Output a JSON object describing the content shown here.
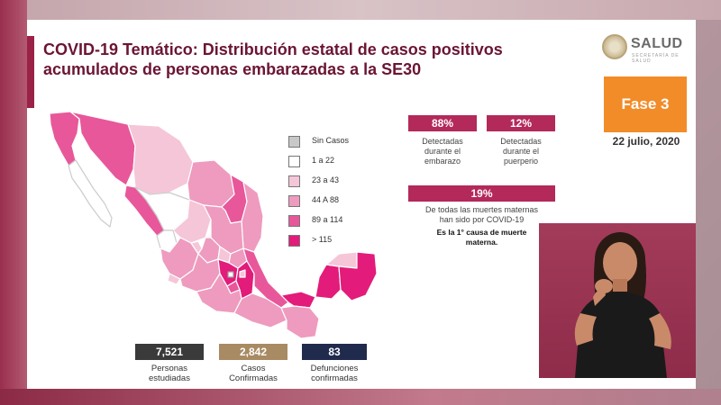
{
  "title_lines": [
    "COVID-19 Temático: Distribución estatal de casos positivos",
    "acumulados de personas embarazadas a la SE30"
  ],
  "logo": {
    "text": "SALUD",
    "subtext": "SECRETARÍA DE SALUD"
  },
  "phase_label": "Fase 3",
  "date": "22 julio, 2020",
  "legend": [
    {
      "label": "Sin Casos",
      "color": "#c8c8c8"
    },
    {
      "label": "1 a 22",
      "color": "#ffffff"
    },
    {
      "label": "23 a 43",
      "color": "#f5c6d8"
    },
    {
      "label": "44 A 88",
      "color": "#ee9bbf"
    },
    {
      "label": "89 a 114",
      "color": "#e8579a"
    },
    {
      "label": "> 115",
      "color": "#e31b7a"
    }
  ],
  "stats": {
    "pregnancy": {
      "value": "88%",
      "lines": [
        "Detectadas",
        "durante el",
        "embarazo"
      ]
    },
    "puerperium": {
      "value": "12%",
      "lines": [
        "Detectadas",
        "durante el",
        "puerperio"
      ]
    },
    "maternal_deaths": {
      "value": "19%",
      "lines": [
        "De todas las muertes maternas",
        "han sido por COVID-19"
      ],
      "note": [
        "Es la 1° causa de muerte",
        "materna."
      ]
    }
  },
  "counts": [
    {
      "value": "7,521",
      "lines": [
        "Personas",
        "estudiadas"
      ],
      "color": "#3a3a3a"
    },
    {
      "value": "2,842",
      "lines": [
        "Casos",
        "Confirmadas"
      ],
      "color": "#a88a63"
    },
    {
      "value": "83",
      "lines": [
        "Defunciones",
        "confirmadas"
      ],
      "color": "#1f2a4d"
    }
  ],
  "colors": {
    "title": "#6b1535",
    "accent": "#9b2247",
    "phase": "#f28c28",
    "badge": "#b3295a"
  }
}
